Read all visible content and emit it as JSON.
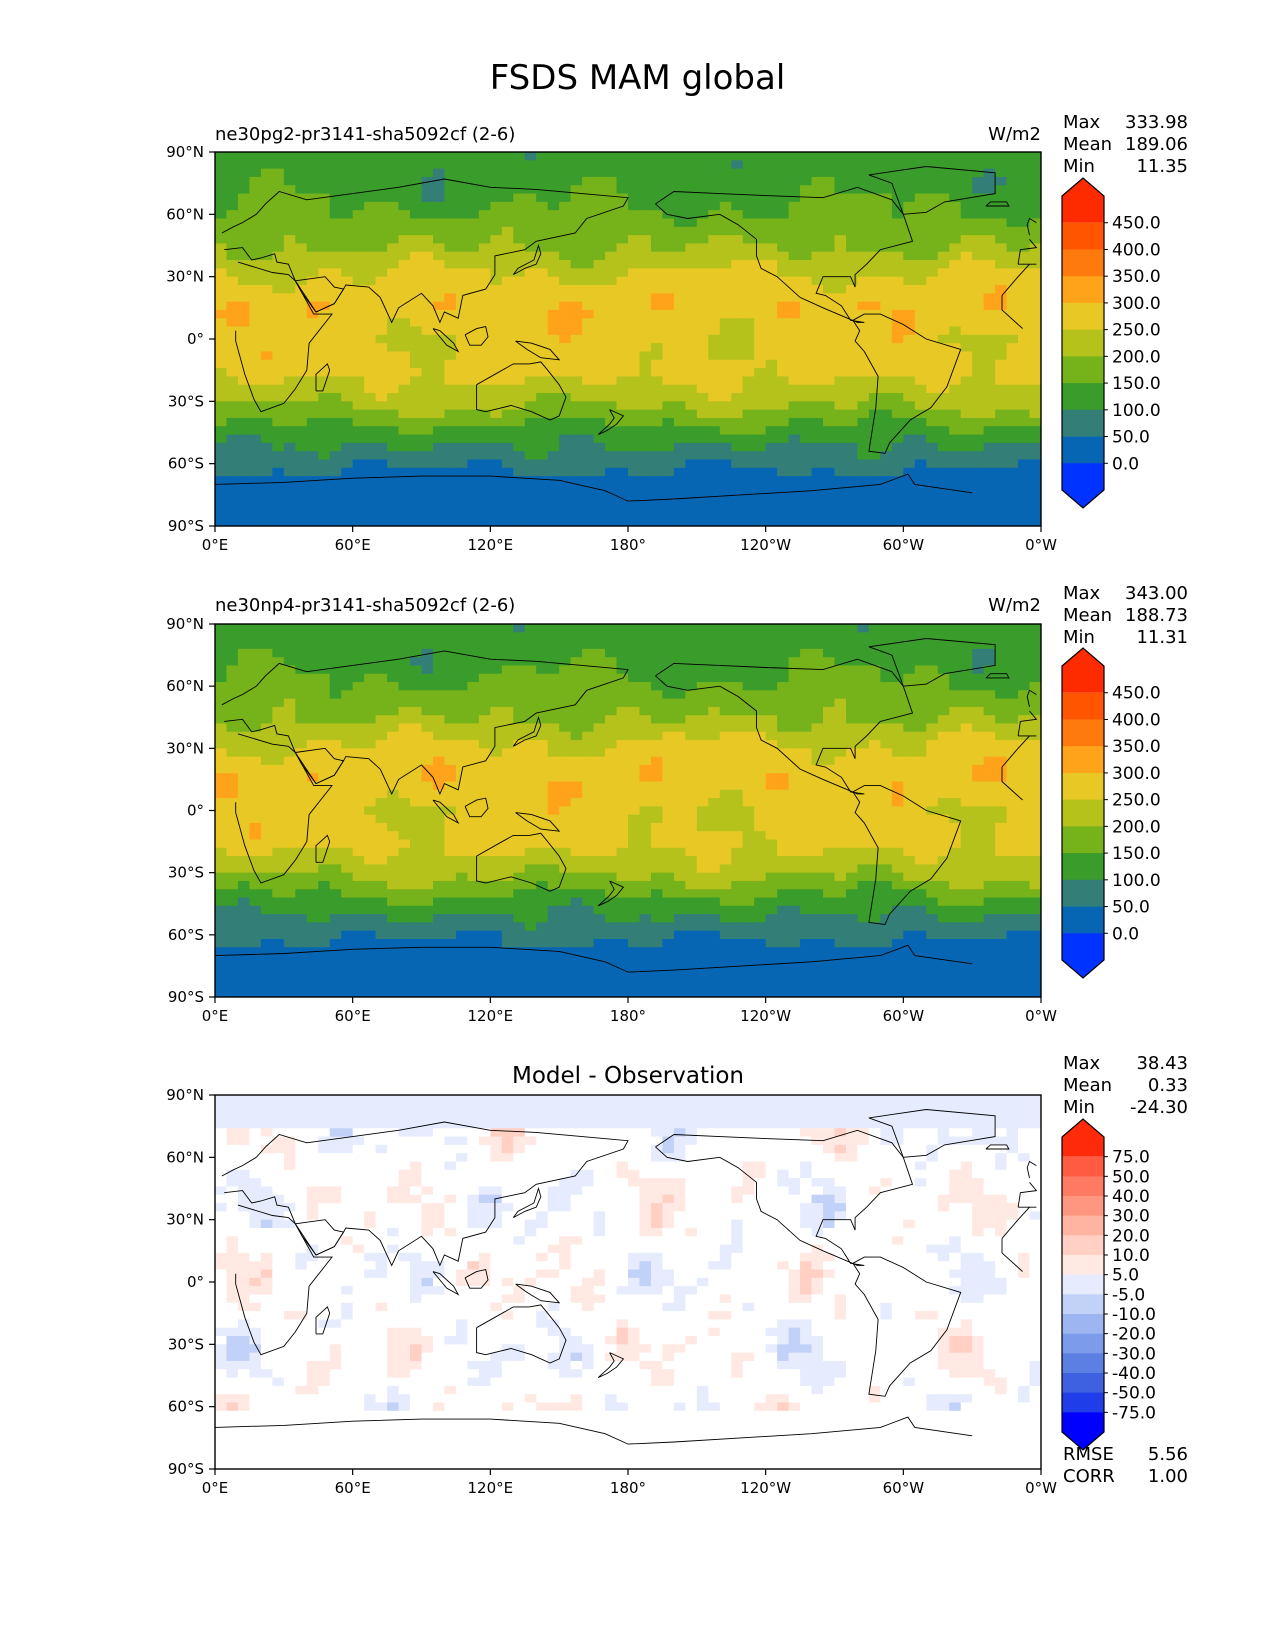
{
  "figure": {
    "title": "FSDS MAM global"
  },
  "colors": {
    "field_levels": [
      "#0033ff",
      "#0766b3",
      "#337f77",
      "#3a9c2b",
      "#76b31a",
      "#b5c21c",
      "#e8c825",
      "#ffa31a",
      "#ff7a0d",
      "#ff5500",
      "#ff2b00"
    ],
    "diff_levels": [
      "#0000ff",
      "#1f3de8",
      "#3d61e0",
      "#5c7fe3",
      "#7c9bea",
      "#9db5f1",
      "#c1d1f8",
      "#e6ecfd",
      "#ffffff",
      "#ffe9e2",
      "#ffd0c3",
      "#ffb3a1",
      "#ff9780",
      "#ff7a62",
      "#ff5a42",
      "#ff2a0a"
    ]
  },
  "chart_data": [
    {
      "type": "heatmap",
      "panel": "top",
      "title": "ne30pg2-pr3141-sha5092cf (2-6)",
      "units": "W/m2",
      "stats": [
        {
          "label": "Max",
          "value": "333.98"
        },
        {
          "label": "Mean",
          "value": "189.06"
        },
        {
          "label": "Min",
          "value": "11.35"
        }
      ],
      "colorbar_levels": [
        0,
        50,
        100,
        150,
        200,
        250,
        300,
        350,
        400,
        450
      ],
      "colorbar_labels": [
        "450.0",
        "400.0",
        "350.0",
        "300.0",
        "250.0",
        "200.0",
        "150.0",
        "100.0",
        "50.0",
        "0.0"
      ],
      "xticks": [
        "0°E",
        "60°E",
        "120°E",
        "180°",
        "120°W",
        "60°W",
        "0°W"
      ],
      "yticks": [
        "90°N",
        "60°N",
        "30°N",
        "0°",
        "30°S",
        "60°S",
        "90°S"
      ],
      "xlim": [
        0,
        360
      ],
      "ylim": [
        -90,
        90
      ],
      "zonal_profile": [
        {
          "lat": 90,
          "value": 120
        },
        {
          "lat": 80,
          "value": 125
        },
        {
          "lat": 70,
          "value": 135
        },
        {
          "lat": 60,
          "value": 160
        },
        {
          "lat": 45,
          "value": 195
        },
        {
          "lat": 30,
          "value": 260
        },
        {
          "lat": 15,
          "value": 290
        },
        {
          "lat": 0,
          "value": 265
        },
        {
          "lat": -15,
          "value": 270
        },
        {
          "lat": -30,
          "value": 215
        },
        {
          "lat": -45,
          "value": 130
        },
        {
          "lat": -60,
          "value": 60
        },
        {
          "lat": -70,
          "value": 30
        },
        {
          "lat": -90,
          "value": 15
        }
      ]
    },
    {
      "type": "heatmap",
      "panel": "middle",
      "title": "ne30np4-pr3141-sha5092cf (2-6)",
      "units": "W/m2",
      "stats": [
        {
          "label": "Max",
          "value": "343.00"
        },
        {
          "label": "Mean",
          "value": "188.73"
        },
        {
          "label": "Min",
          "value": "11.31"
        }
      ],
      "colorbar_levels": [
        0,
        50,
        100,
        150,
        200,
        250,
        300,
        350,
        400,
        450
      ],
      "colorbar_labels": [
        "450.0",
        "400.0",
        "350.0",
        "300.0",
        "250.0",
        "200.0",
        "150.0",
        "100.0",
        "50.0",
        "0.0"
      ],
      "xticks": [
        "0°E",
        "60°E",
        "120°E",
        "180°",
        "120°W",
        "60°W",
        "0°W"
      ],
      "yticks": [
        "90°N",
        "60°N",
        "30°N",
        "0°",
        "30°S",
        "60°S",
        "90°S"
      ],
      "xlim": [
        0,
        360
      ],
      "ylim": [
        -90,
        90
      ],
      "zonal_profile": [
        {
          "lat": 90,
          "value": 120
        },
        {
          "lat": 80,
          "value": 125
        },
        {
          "lat": 70,
          "value": 135
        },
        {
          "lat": 60,
          "value": 160
        },
        {
          "lat": 45,
          "value": 195
        },
        {
          "lat": 30,
          "value": 262
        },
        {
          "lat": 15,
          "value": 292
        },
        {
          "lat": 0,
          "value": 262
        },
        {
          "lat": -15,
          "value": 268
        },
        {
          "lat": -30,
          "value": 212
        },
        {
          "lat": -45,
          "value": 128
        },
        {
          "lat": -60,
          "value": 58
        },
        {
          "lat": -70,
          "value": 30
        },
        {
          "lat": -90,
          "value": 15
        }
      ]
    },
    {
      "type": "heatmap",
      "panel": "bottom",
      "title": "Model - Observation",
      "units": "",
      "stats": [
        {
          "label": "Max",
          "value": "38.43"
        },
        {
          "label": "Mean",
          "value": "0.33"
        },
        {
          "label": "Min",
          "value": "-24.30"
        }
      ],
      "colorbar_levels": [
        -75,
        -50,
        -40,
        -30,
        -20,
        -10,
        -5,
        5,
        10,
        20,
        30,
        40,
        50,
        75
      ],
      "colorbar_labels": [
        "75.0",
        "50.0",
        "40.0",
        "30.0",
        "20.0",
        "10.0",
        "5.0",
        "-5.0",
        "-10.0",
        "-20.0",
        "-30.0",
        "-40.0",
        "-50.0",
        "-75.0"
      ],
      "xticks": [
        "0°E",
        "60°E",
        "120°E",
        "180°",
        "120°W",
        "60°W",
        "0°W"
      ],
      "yticks": [
        "90°N",
        "60°N",
        "30°N",
        "0°",
        "30°S",
        "60°S",
        "90°S"
      ],
      "xlim": [
        0,
        360
      ],
      "ylim": [
        -90,
        90
      ],
      "metrics": [
        {
          "label": "RMSE",
          "value": "5.56"
        },
        {
          "label": "CORR",
          "value": "1.00"
        }
      ]
    }
  ]
}
